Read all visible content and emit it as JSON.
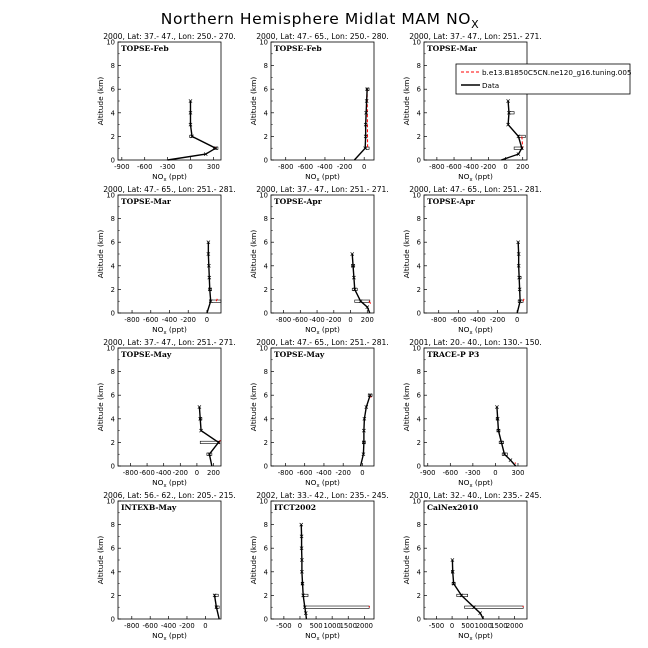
{
  "figure": {
    "title": "Northern Hemisphere Midlat MAM NO",
    "title_sub": "X"
  },
  "legend": {
    "model_label": "b.e13.B1850C5CN.ne120_g16.tuning.005",
    "model_color": "#ff0000",
    "obs_label": "Data",
    "obs_color": "#000000"
  },
  "axis_labels": {
    "y": "Altitude (km)",
    "x_main": "NO",
    "x_sub": "x",
    "x_unit": "(ppt)"
  },
  "chart_data": [
    {
      "type": "line",
      "title": "2000, Lat: 37.- 47., Lon: 250.- 270.",
      "campaign": "TOPSE-Feb",
      "xlim": [
        -950,
        400
      ],
      "xticks": [
        -900,
        -600,
        -300,
        0,
        300
      ],
      "ylim": [
        0,
        10
      ],
      "yticks": [
        0,
        2,
        4,
        6,
        8,
        10
      ],
      "model": [
        [
          330,
          1.1
        ],
        [
          320,
          1.0
        ]
      ],
      "data": [
        [
          -300,
          0
        ],
        [
          200,
          0.5
        ],
        [
          330,
          1.0
        ],
        [
          20,
          2.0
        ],
        [
          0,
          3.0
        ],
        [
          0,
          4.0
        ],
        [
          0,
          5.0
        ]
      ],
      "boxes": [
        [
          300,
          360,
          0.9,
          1.1
        ],
        [
          -10,
          20,
          1.9,
          2.1
        ]
      ]
    },
    {
      "type": "line",
      "title": "2000, Lat: 47.- 65., Lon: 250.- 280.",
      "campaign": "TOPSE-Feb",
      "xlim": [
        -950,
        100
      ],
      "xticks": [
        -800,
        -600,
        -400,
        -200,
        0
      ],
      "ylim": [
        0,
        10
      ],
      "yticks": [
        0,
        2,
        4,
        6,
        8,
        10
      ],
      "model": [
        [
          30,
          6.0
        ],
        [
          35,
          1.0
        ]
      ],
      "data": [
        [
          -100,
          0
        ],
        [
          10,
          1.0
        ],
        [
          15,
          2.0
        ],
        [
          15,
          3.0
        ],
        [
          20,
          4.0
        ],
        [
          25,
          5.0
        ],
        [
          30,
          6.0
        ]
      ],
      "boxes": [
        [
          20,
          50,
          5.9,
          6.1
        ],
        [
          20,
          50,
          0.9,
          1.1
        ]
      ]
    },
    {
      "type": "line",
      "title": "2000, Lat: 37.- 47., Lon: 251.- 271.",
      "campaign": "TOPSE-Mar",
      "xlim": [
        -950,
        250
      ],
      "xticks": [
        -800,
        -600,
        -400,
        -200,
        0,
        200
      ],
      "ylim": [
        0,
        10
      ],
      "yticks": [
        0,
        2,
        4,
        6,
        8,
        10
      ],
      "model": [
        [
          190,
          2.0
        ],
        [
          200,
          1.0
        ]
      ],
      "data": [
        [
          -50,
          0
        ],
        [
          150,
          0.5
        ],
        [
          190,
          1.0
        ],
        [
          150,
          2.0
        ],
        [
          30,
          3.0
        ],
        [
          40,
          4.0
        ],
        [
          30,
          5.0
        ]
      ],
      "boxes": [
        [
          150,
          230,
          1.9,
          2.1
        ],
        [
          100,
          200,
          0.9,
          1.1
        ],
        [
          40,
          100,
          3.9,
          4.1
        ]
      ]
    },
    {
      "type": "line",
      "title": "2000, Lat: 47.- 65., Lon: 251.- 281.",
      "campaign": "TOPSE-Mar",
      "xlim": [
        -950,
        150
      ],
      "xticks": [
        -800,
        -600,
        -400,
        -200,
        0
      ],
      "ylim": [
        0,
        10
      ],
      "yticks": [
        0,
        2,
        4,
        6,
        8,
        10
      ],
      "model": [
        [
          100,
          1.0
        ],
        [
          110,
          1.2
        ]
      ],
      "data": [
        [
          0,
          0
        ],
        [
          40,
          1.0
        ],
        [
          30,
          2.0
        ],
        [
          25,
          3.0
        ],
        [
          20,
          4.0
        ],
        [
          15,
          5.0
        ],
        [
          15,
          6.0
        ]
      ],
      "boxes": [
        [
          30,
          150,
          0.9,
          1.1
        ],
        [
          20,
          50,
          1.9,
          2.1
        ]
      ]
    },
    {
      "type": "line",
      "title": "2000, Lat: 37.- 47., Lon: 251.- 271.",
      "campaign": "TOPSE-Apr",
      "xlim": [
        -950,
        280
      ],
      "xticks": [
        -800,
        -600,
        -400,
        -200,
        0,
        200
      ],
      "ylim": [
        0,
        10
      ],
      "yticks": [
        0,
        2,
        4,
        6,
        8,
        10
      ],
      "model": [
        [
          220,
          1.0
        ],
        [
          240,
          0.8
        ]
      ],
      "data": [
        [
          230,
          0
        ],
        [
          200,
          0.5
        ],
        [
          120,
          1.0
        ],
        [
          50,
          2.0
        ],
        [
          40,
          3.0
        ],
        [
          30,
          4.0
        ],
        [
          20,
          5.0
        ]
      ],
      "boxes": [
        [
          50,
          230,
          0.9,
          1.1
        ],
        [
          20,
          80,
          1.9,
          2.1
        ],
        [
          10,
          50,
          3.9,
          4.1
        ]
      ]
    },
    {
      "type": "line",
      "title": "2000, Lat: 47.- 65., Lon: 251.- 281.",
      "campaign": "TOPSE-Apr",
      "xlim": [
        -950,
        100
      ],
      "xticks": [
        -800,
        -600,
        -400,
        -200,
        0
      ],
      "ylim": [
        0,
        10
      ],
      "yticks": [
        0,
        2,
        4,
        6,
        8,
        10
      ],
      "model": [
        [
          60,
          1.0
        ],
        [
          70,
          1.2
        ]
      ],
      "data": [
        [
          0,
          0
        ],
        [
          30,
          1.0
        ],
        [
          25,
          2.0
        ],
        [
          20,
          3.0
        ],
        [
          15,
          4.0
        ],
        [
          15,
          5.0
        ],
        [
          10,
          6.0
        ]
      ],
      "boxes": [
        [
          10,
          60,
          0.9,
          1.1
        ],
        [
          20,
          40,
          2.9,
          3.1
        ]
      ]
    },
    {
      "type": "line",
      "title": "2000, Lat: 37.- 47., Lon: 251.- 271.",
      "campaign": "TOPSE-May",
      "xlim": [
        -950,
        290
      ],
      "xticks": [
        -800,
        -600,
        -400,
        -200,
        0,
        200
      ],
      "ylim": [
        0,
        10
      ],
      "yticks": [
        0,
        2,
        4,
        6,
        8,
        10
      ],
      "model": [
        [
          270,
          2.0
        ],
        [
          280,
          2.2
        ]
      ],
      "data": [
        [
          180,
          0
        ],
        [
          150,
          1.0
        ],
        [
          260,
          2.0
        ],
        [
          50,
          3.0
        ],
        [
          40,
          4.0
        ],
        [
          30,
          5.0
        ]
      ],
      "boxes": [
        [
          40,
          270,
          1.9,
          2.1
        ],
        [
          120,
          180,
          0.9,
          1.1
        ],
        [
          30,
          60,
          3.9,
          4.1
        ]
      ]
    },
    {
      "type": "line",
      "title": "2000, Lat: 47.- 65., Lon: 251.- 281.",
      "campaign": "TOPSE-May",
      "xlim": [
        -950,
        120
      ],
      "xticks": [
        -800,
        -600,
        -400,
        -200,
        0
      ],
      "ylim": [
        0,
        10
      ],
      "yticks": [
        0,
        2,
        4,
        6,
        8,
        10
      ],
      "model": [
        [
          80,
          6.0
        ],
        [
          90,
          5.8
        ]
      ],
      "data": [
        [
          -20,
          0
        ],
        [
          10,
          1.0
        ],
        [
          15,
          2.0
        ],
        [
          15,
          3.0
        ],
        [
          20,
          4.0
        ],
        [
          40,
          5.0
        ],
        [
          80,
          6.0
        ]
      ],
      "boxes": [
        [
          60,
          100,
          5.9,
          6.1
        ],
        [
          0,
          30,
          1.9,
          2.1
        ]
      ]
    },
    {
      "type": "line",
      "title": "2001, Lat: 20.- 40., Lon: 130.- 150.",
      "campaign": "TRACE-P P3",
      "xlim": [
        -950,
        420
      ],
      "xticks": [
        -900,
        -600,
        -300,
        0,
        300
      ],
      "ylim": [
        0,
        10
      ],
      "yticks": [
        0,
        2,
        4,
        6,
        8,
        10
      ],
      "model": [
        [
          260,
          0.3
        ],
        [
          270,
          0.2
        ]
      ],
      "data": [
        [
          270,
          0
        ],
        [
          200,
          0.5
        ],
        [
          120,
          1.0
        ],
        [
          80,
          2.0
        ],
        [
          40,
          3.0
        ],
        [
          30,
          4.0
        ],
        [
          20,
          5.0
        ]
      ],
      "boxes": [
        [
          90,
          160,
          0.9,
          1.1
        ],
        [
          50,
          110,
          1.9,
          2.1
        ],
        [
          20,
          60,
          2.9,
          3.1
        ],
        [
          10,
          40,
          3.9,
          4.1
        ]
      ]
    },
    {
      "type": "line",
      "title": "2006, Lat: 56.- 62., Lon: 205.- 215.",
      "campaign": "INTEXB-May",
      "xlim": [
        -950,
        170
      ],
      "xticks": [
        -800,
        -600,
        -400,
        -200,
        0
      ],
      "ylim": [
        0,
        10
      ],
      "yticks": [
        0,
        2,
        4,
        6,
        8,
        10
      ],
      "model": [
        [
          120,
          1.0
        ],
        [
          125,
          1.1
        ]
      ],
      "data": [
        [
          150,
          0
        ],
        [
          120,
          1.0
        ],
        [
          100,
          2.0
        ]
      ],
      "boxes": [
        [
          100,
          140,
          1.9,
          2.1
        ],
        [
          110,
          150,
          0.9,
          1.1
        ]
      ]
    },
    {
      "type": "line",
      "title": "2002, Lat: 33.- 42., Lon: 235.- 245.",
      "campaign": "ITCT2002",
      "xlim": [
        -900,
        2300
      ],
      "xticks": [
        -500,
        0,
        500,
        1000,
        1500,
        2000
      ],
      "ylim": [
        0,
        10
      ],
      "yticks": [
        0,
        2,
        4,
        6,
        8,
        10
      ],
      "model": [
        [
          2150,
          1.0
        ],
        [
          2160,
          1.1
        ]
      ],
      "data": [
        [
          200,
          0
        ],
        [
          180,
          0.5
        ],
        [
          150,
          1.0
        ],
        [
          100,
          2.0
        ],
        [
          80,
          3.0
        ],
        [
          60,
          4.0
        ],
        [
          60,
          5.0
        ],
        [
          50,
          6.0
        ],
        [
          50,
          7.0
        ],
        [
          40,
          8.0
        ]
      ],
      "boxes": [
        [
          150,
          2150,
          0.9,
          1.1
        ],
        [
          90,
          250,
          1.9,
          2.1
        ],
        [
          40,
          100,
          2.9,
          3.1
        ]
      ]
    },
    {
      "type": "line",
      "title": "2010, Lat: 32.- 40., Lon: 235.- 245.",
      "campaign": "CalNex2010",
      "xlim": [
        -900,
        2400
      ],
      "xticks": [
        -500,
        0,
        500,
        1000,
        1500,
        2000
      ],
      "ylim": [
        0,
        10
      ],
      "yticks": [
        0,
        2,
        4,
        6,
        8,
        10
      ],
      "model": [
        [
          2270,
          1.0
        ],
        [
          2280,
          1.1
        ]
      ],
      "data": [
        [
          1000,
          0
        ],
        [
          900,
          0.5
        ],
        [
          700,
          1.0
        ],
        [
          300,
          2.0
        ],
        [
          50,
          3.0
        ],
        [
          20,
          4.0
        ],
        [
          10,
          5.0
        ]
      ],
      "boxes": [
        [
          400,
          2280,
          0.9,
          1.1
        ],
        [
          150,
          500,
          1.9,
          2.1
        ],
        [
          0,
          100,
          2.9,
          3.1
        ],
        [
          -20,
          40,
          3.9,
          4.1
        ]
      ]
    }
  ]
}
